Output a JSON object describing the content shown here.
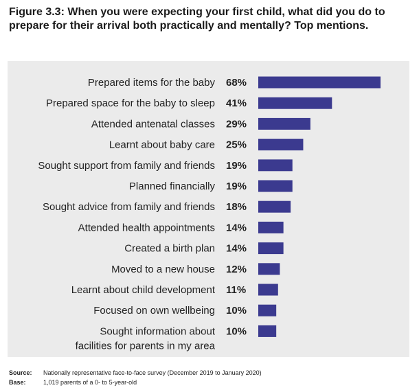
{
  "title": "Figure 3.3: When you were expecting your first child, what did you do to prepare for their arrival both practically and mentally? Top mentions.",
  "chart_data": {
    "type": "bar",
    "orientation": "horizontal",
    "categories": [
      "Prepared items for the baby",
      "Prepared space for the baby to sleep",
      "Attended antenatal classes",
      "Learnt about baby care",
      "Sought support from family and friends",
      "Planned financially",
      "Sought advice from family and friends",
      "Attended health appointments",
      "Created a birth plan",
      "Moved to a new house",
      "Learnt about child development",
      "Focused on own wellbeing",
      "Sought information about facilities for parents in my area"
    ],
    "category_lines": [
      [
        "Prepared items for the baby"
      ],
      [
        "Prepared space for the baby to sleep"
      ],
      [
        "Attended antenatal classes"
      ],
      [
        "Learnt about baby care"
      ],
      [
        "Sought support from family and friends"
      ],
      [
        "Planned financially"
      ],
      [
        "Sought advice from family and friends"
      ],
      [
        "Attended health appointments"
      ],
      [
        "Created a birth plan"
      ],
      [
        "Moved to a new house"
      ],
      [
        "Learnt about child development"
      ],
      [
        "Focused on own wellbeing"
      ],
      [
        "Sought information about",
        "facilities for parents in my area"
      ]
    ],
    "values": [
      68,
      41,
      29,
      25,
      19,
      19,
      18,
      14,
      14,
      12,
      11,
      10,
      10
    ],
    "value_labels": [
      "68%",
      "41%",
      "29%",
      "25%",
      "19%",
      "19%",
      "18%",
      "14%",
      "14%",
      "12%",
      "11%",
      "10%",
      "10%"
    ],
    "bar_color": "#3b3a8f",
    "xlim": [
      0,
      68
    ],
    "grid": false
  },
  "notes": {
    "source_key": "Source:",
    "source_text": "Nationally representative face-to-face survey (December 2019 to January 2020)",
    "base_key": "Base:",
    "base_text": "1,019 parents of a 0- to 5-year-old"
  }
}
